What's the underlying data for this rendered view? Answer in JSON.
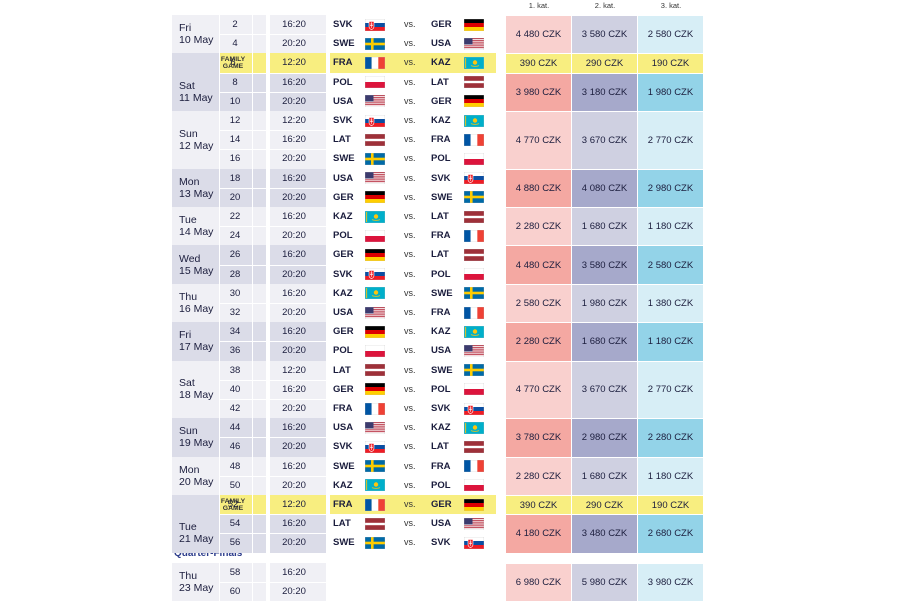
{
  "categories": [
    "1. kat.",
    "2. kat.",
    "3. kat."
  ],
  "family_game_label": [
    "FAMILY",
    "GAME"
  ],
  "vs_label": "vs.",
  "quarter_finals_title": "Quarter-Finals",
  "colors": {
    "row_light": "#f0f0f5",
    "row_dark": "#dbdce8",
    "family_highlight": "#f8ee80",
    "cat1_light": "#f9d0ce",
    "cat1_dark": "#f4a8a2",
    "cat2_light": "#cfd0e1",
    "cat2_dark": "#a6a9cb",
    "cat3_light": "#d7eef6",
    "cat3_dark": "#93d3e8",
    "text": "#1b1d3d",
    "accent": "#2c3c8c"
  },
  "days": [
    {
      "day": "Fri",
      "date": "10 May",
      "matches": [
        {
          "num": "2",
          "time": "16:20",
          "home": "SVK",
          "away": "GER",
          "family": false
        },
        {
          "num": "4",
          "time": "20:20",
          "home": "SWE",
          "away": "USA",
          "family": false
        }
      ],
      "prices": [
        "4 480 CZK",
        "3 580 CZK",
        "2 580 CZK"
      ]
    },
    {
      "day": "Sat",
      "date": "11 May",
      "matches": [
        {
          "num": "6",
          "time": "12:20",
          "home": "FRA",
          "away": "KAZ",
          "family": true
        },
        {
          "num": "8",
          "time": "16:20",
          "home": "POL",
          "away": "LAT",
          "family": false
        },
        {
          "num": "10",
          "time": "20:20",
          "home": "USA",
          "away": "GER",
          "family": false
        }
      ],
      "family_prices": [
        "390 CZK",
        "290 CZK",
        "190 CZK"
      ],
      "prices": [
        "3 980 CZK",
        "3 180 CZK",
        "1 980 CZK"
      ]
    },
    {
      "day": "Sun",
      "date": "12 May",
      "matches": [
        {
          "num": "12",
          "time": "12:20",
          "home": "SVK",
          "away": "KAZ",
          "family": false
        },
        {
          "num": "14",
          "time": "16:20",
          "home": "LAT",
          "away": "FRA",
          "family": false
        },
        {
          "num": "16",
          "time": "20:20",
          "home": "SWE",
          "away": "POL",
          "family": false
        }
      ],
      "prices": [
        "4 770 CZK",
        "3 670 CZK",
        "2 770 CZK"
      ]
    },
    {
      "day": "Mon",
      "date": "13 May",
      "matches": [
        {
          "num": "18",
          "time": "16:20",
          "home": "USA",
          "away": "SVK",
          "family": false
        },
        {
          "num": "20",
          "time": "20:20",
          "home": "GER",
          "away": "SWE",
          "family": false
        }
      ],
      "prices": [
        "4 880 CZK",
        "4 080 CZK",
        "2 980 CZK"
      ]
    },
    {
      "day": "Tue",
      "date": "14 May",
      "matches": [
        {
          "num": "22",
          "time": "16:20",
          "home": "KAZ",
          "away": "LAT",
          "family": false
        },
        {
          "num": "24",
          "time": "20:20",
          "home": "POL",
          "away": "FRA",
          "family": false
        }
      ],
      "prices": [
        "2 280 CZK",
        "1 680 CZK",
        "1 180 CZK"
      ]
    },
    {
      "day": "Wed",
      "date": "15 May",
      "matches": [
        {
          "num": "26",
          "time": "16:20",
          "home": "GER",
          "away": "LAT",
          "family": false
        },
        {
          "num": "28",
          "time": "20:20",
          "home": "SVK",
          "away": "POL",
          "family": false
        }
      ],
      "prices": [
        "4 480 CZK",
        "3 580 CZK",
        "2 580 CZK"
      ]
    },
    {
      "day": "Thu",
      "date": "16 May",
      "matches": [
        {
          "num": "30",
          "time": "16:20",
          "home": "KAZ",
          "away": "SWE",
          "family": false
        },
        {
          "num": "32",
          "time": "20:20",
          "home": "USA",
          "away": "FRA",
          "family": false
        }
      ],
      "prices": [
        "2 580 CZK",
        "1 980 CZK",
        "1 380 CZK"
      ]
    },
    {
      "day": "Fri",
      "date": "17 May",
      "matches": [
        {
          "num": "34",
          "time": "16:20",
          "home": "GER",
          "away": "KAZ",
          "family": false
        },
        {
          "num": "36",
          "time": "20:20",
          "home": "POL",
          "away": "USA",
          "family": false
        }
      ],
      "prices": [
        "2 280 CZK",
        "1 680 CZK",
        "1 180 CZK"
      ]
    },
    {
      "day": "Sat",
      "date": "18 May",
      "matches": [
        {
          "num": "38",
          "time": "12:20",
          "home": "LAT",
          "away": "SWE",
          "family": false
        },
        {
          "num": "40",
          "time": "16:20",
          "home": "GER",
          "away": "POL",
          "family": false
        },
        {
          "num": "42",
          "time": "20:20",
          "home": "FRA",
          "away": "SVK",
          "family": false
        }
      ],
      "prices": [
        "4 770 CZK",
        "3 670 CZK",
        "2 770 CZK"
      ]
    },
    {
      "day": "Sun",
      "date": "19 May",
      "matches": [
        {
          "num": "44",
          "time": "16:20",
          "home": "USA",
          "away": "KAZ",
          "family": false
        },
        {
          "num": "46",
          "time": "20:20",
          "home": "SVK",
          "away": "LAT",
          "family": false
        }
      ],
      "prices": [
        "3 780 CZK",
        "2 980 CZK",
        "2 280 CZK"
      ]
    },
    {
      "day": "Mon",
      "date": "20 May",
      "matches": [
        {
          "num": "48",
          "time": "16:20",
          "home": "SWE",
          "away": "FRA",
          "family": false
        },
        {
          "num": "50",
          "time": "20:20",
          "home": "KAZ",
          "away": "POL",
          "family": false
        }
      ],
      "prices": [
        "2 280 CZK",
        "1 680 CZK",
        "1 180 CZK"
      ]
    },
    {
      "day": "Tue",
      "date": "21 May",
      "matches": [
        {
          "num": "52",
          "time": "12:20",
          "home": "FRA",
          "away": "GER",
          "family": true
        },
        {
          "num": "54",
          "time": "16:20",
          "home": "LAT",
          "away": "USA",
          "family": false
        },
        {
          "num": "56",
          "time": "20:20",
          "home": "SWE",
          "away": "SVK",
          "family": false
        }
      ],
      "family_prices": [
        "390 CZK",
        "290 CZK",
        "190 CZK"
      ],
      "prices": [
        "4 180 CZK",
        "3 480 CZK",
        "2 680 CZK"
      ]
    },
    {
      "day": "Thu",
      "date": "23 May",
      "quarter": true,
      "matches": [
        {
          "num": "58",
          "time": "16:20",
          "family": false
        },
        {
          "num": "60",
          "time": "20:20",
          "family": false
        }
      ],
      "prices": [
        "6 980 CZK",
        "5 980 CZK",
        "3 980 CZK"
      ]
    }
  ]
}
